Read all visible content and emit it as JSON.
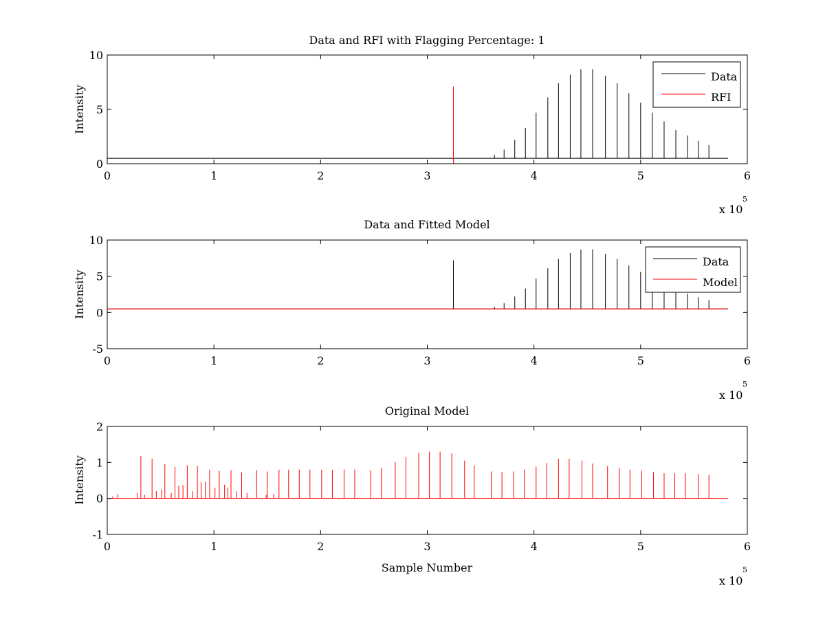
{
  "figure": {
    "background": "#ffffff",
    "colors": {
      "data": "#000000",
      "rfi": "#ff0000",
      "model": "#ff0000",
      "axes": "#000000"
    }
  },
  "chart_data": [
    {
      "type": "line",
      "title": "Data and RFI with Flagging Percentage: 1",
      "xlabel": "",
      "ylabel": "Intensity",
      "xlim": [
        0,
        600000
      ],
      "ylim": [
        0,
        10
      ],
      "xticks": [
        0,
        1,
        2,
        3,
        4,
        5,
        6
      ],
      "yticks": [
        0,
        5,
        10
      ],
      "x_exponent_label": "x 10",
      "x_exponent": "5",
      "legend": {
        "position": "top-right",
        "entries": [
          "Data",
          "RFI"
        ]
      },
      "series": [
        {
          "name": "Data",
          "color": "#000000",
          "baseline": 0.5,
          "spikes": [
            [
              363000,
              0.8
            ],
            [
              372000,
              1.3
            ],
            [
              382000,
              2.2
            ],
            [
              392000,
              3.3
            ],
            [
              402000,
              4.7
            ],
            [
              413000,
              6.1
            ],
            [
              423000,
              7.4
            ],
            [
              434000,
              8.2
            ],
            [
              444000,
              8.7
            ],
            [
              455000,
              8.7
            ],
            [
              467000,
              8.1
            ],
            [
              478000,
              7.4
            ],
            [
              489000,
              6.5
            ],
            [
              500000,
              5.6
            ],
            [
              511000,
              4.7
            ],
            [
              522000,
              3.9
            ],
            [
              533000,
              3.1
            ],
            [
              544000,
              2.6
            ],
            [
              554000,
              2.1
            ],
            [
              564000,
              1.7
            ]
          ],
          "x_end": 582000
        },
        {
          "name": "RFI",
          "color": "#ff0000",
          "spikes": [
            [
              324500,
              7.1
            ]
          ]
        }
      ]
    },
    {
      "type": "line",
      "title": "Data and Fitted Model",
      "xlabel": "",
      "ylabel": "Intensity",
      "xlim": [
        0,
        600000
      ],
      "ylim": [
        -5,
        10
      ],
      "xticks": [
        0,
        1,
        2,
        3,
        4,
        5,
        6
      ],
      "yticks": [
        -5,
        0,
        5,
        10
      ],
      "x_exponent_label": "x 10",
      "x_exponent": "5",
      "legend": {
        "position": "top-right",
        "entries": [
          "Data",
          "Model"
        ]
      },
      "series": [
        {
          "name": "Data",
          "color": "#000000",
          "baseline": 0.5,
          "spikes": [
            [
              324500,
              7.2
            ],
            [
              363000,
              0.8
            ],
            [
              372000,
              1.3
            ],
            [
              382000,
              2.2
            ],
            [
              392000,
              3.3
            ],
            [
              402000,
              4.7
            ],
            [
              413000,
              6.1
            ],
            [
              423000,
              7.4
            ],
            [
              434000,
              8.2
            ],
            [
              444000,
              8.7
            ],
            [
              455000,
              8.7
            ],
            [
              467000,
              8.1
            ],
            [
              478000,
              7.4
            ],
            [
              489000,
              6.5
            ],
            [
              500000,
              5.6
            ],
            [
              511000,
              4.7
            ],
            [
              522000,
              3.9
            ],
            [
              533000,
              3.1
            ],
            [
              544000,
              2.6
            ],
            [
              554000,
              2.1
            ],
            [
              564000,
              1.7
            ]
          ],
          "x_end": 582000
        },
        {
          "name": "Model",
          "color": "#ff0000",
          "baseline": 0.5,
          "x_end": 582000
        }
      ]
    },
    {
      "type": "line",
      "title": "Original Model",
      "xlabel": "Sample Number",
      "ylabel": "Intensity",
      "xlim": [
        0,
        600000
      ],
      "ylim": [
        -1,
        2
      ],
      "xticks": [
        0,
        1,
        2,
        3,
        4,
        5,
        6
      ],
      "yticks": [
        -1,
        0,
        1,
        2
      ],
      "x_exponent_label": "x 10",
      "x_exponent": "5",
      "series": [
        {
          "name": "",
          "color": "#ff0000",
          "baseline": 0.0,
          "spikes": [
            [
              5000,
              0.05
            ],
            [
              10000,
              0.12
            ],
            [
              28000,
              0.15
            ],
            [
              31500,
              1.18
            ],
            [
              35000,
              0.1
            ],
            [
              42000,
              1.1
            ],
            [
              46000,
              0.2
            ],
            [
              51000,
              0.25
            ],
            [
              54000,
              0.95
            ],
            [
              60000,
              0.15
            ],
            [
              63500,
              0.88
            ],
            [
              67000,
              0.35
            ],
            [
              71000,
              0.37
            ],
            [
              75000,
              0.92
            ],
            [
              80000,
              0.2
            ],
            [
              84500,
              0.9
            ],
            [
              88000,
              0.45
            ],
            [
              92000,
              0.47
            ],
            [
              96000,
              0.8
            ],
            [
              101000,
              0.3
            ],
            [
              105000,
              0.77
            ],
            [
              110000,
              0.38
            ],
            [
              113000,
              0.3
            ],
            [
              116000,
              0.78
            ],
            [
              121000,
              0.2
            ],
            [
              126000,
              0.72
            ],
            [
              131000,
              0.15
            ],
            [
              140000,
              0.78
            ],
            [
              149000,
              0.1
            ],
            [
              150000,
              0.75
            ],
            [
              156000,
              0.12
            ],
            [
              161000,
              0.8
            ],
            [
              170000,
              0.8
            ],
            [
              180000,
              0.8
            ],
            [
              190000,
              0.8
            ],
            [
              201000,
              0.8
            ],
            [
              211000,
              0.8
            ],
            [
              222000,
              0.8
            ],
            [
              232000,
              0.8
            ],
            [
              247000,
              0.78
            ],
            [
              257000,
              0.85
            ],
            [
              270000,
              1.0
            ],
            [
              280000,
              1.15
            ],
            [
              292000,
              1.27
            ],
            [
              302000,
              1.3
            ],
            [
              312000,
              1.3
            ],
            [
              323000,
              1.25
            ],
            [
              335000,
              1.05
            ],
            [
              344000,
              0.92
            ],
            [
              360000,
              0.75
            ],
            [
              370000,
              0.73
            ],
            [
              381000,
              0.75
            ],
            [
              391000,
              0.8
            ],
            [
              402000,
              0.88
            ],
            [
              412000,
              0.98
            ],
            [
              423000,
              1.1
            ],
            [
              433000,
              1.1
            ],
            [
              445000,
              1.05
            ],
            [
              455000,
              0.97
            ],
            [
              469000,
              0.9
            ],
            [
              480000,
              0.85
            ],
            [
              490000,
              0.8
            ],
            [
              501000,
              0.77
            ],
            [
              512000,
              0.73
            ],
            [
              522000,
              0.7
            ],
            [
              532000,
              0.7
            ],
            [
              542000,
              0.7
            ],
            [
              554000,
              0.68
            ],
            [
              564000,
              0.65
            ]
          ],
          "x_end": 582000
        }
      ]
    }
  ]
}
